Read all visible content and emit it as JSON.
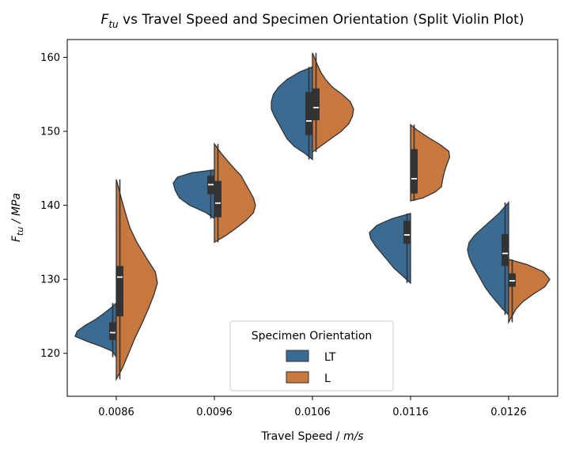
{
  "chart_data": {
    "type": "violin",
    "title_prefix": "F",
    "title_sub": "tu",
    "title_rest": " vs Travel Speed and Specimen Orientation (Split Violin Plot)",
    "xlabel_text": "Travel Speed / ",
    "xlabel_unit": "m/s",
    "ylabel_main": "F",
    "ylabel_sub": "tu",
    "ylabel_unit": " / MPa",
    "categories": [
      "0.0086",
      "0.0096",
      "0.0106",
      "0.0116",
      "0.0126"
    ],
    "ylim": [
      114.2,
      162.4
    ],
    "yticks": [
      120,
      130,
      140,
      150,
      160
    ],
    "grid": false,
    "legend": {
      "title": "Specimen Orientation",
      "placement": "lower center",
      "labels": [
        "LT",
        "L"
      ]
    },
    "series": [
      {
        "name": "LT",
        "color": "#3a6b92",
        "side": "left",
        "groups": [
          {
            "min": 119.5,
            "q1": 121.8,
            "median": 122.8,
            "q3": 124.2,
            "max": 126.8,
            "profile": [
              [
                119.5,
                0
              ],
              [
                120.3,
                0.1
              ],
              [
                121.0,
                0.4
              ],
              [
                121.6,
                0.7
              ],
              [
                122.3,
                1.0
              ],
              [
                123.0,
                0.95
              ],
              [
                123.8,
                0.75
              ],
              [
                124.6,
                0.5
              ],
              [
                125.4,
                0.3
              ],
              [
                126.2,
                0.12
              ],
              [
                126.8,
                0
              ]
            ]
          },
          {
            "min": 138.2,
            "q1": 141.5,
            "median": 142.8,
            "q3": 144.0,
            "max": 144.8,
            "profile": [
              [
                138.2,
                0
              ],
              [
                139.0,
                0.2
              ],
              [
                140.0,
                0.6
              ],
              [
                141.0,
                0.85
              ],
              [
                142.0,
                0.95
              ],
              [
                143.0,
                1.0
              ],
              [
                143.8,
                0.9
              ],
              [
                144.4,
                0.55
              ],
              [
                144.8,
                0
              ]
            ]
          },
          {
            "min": 146.2,
            "q1": 149.5,
            "median": 151.4,
            "q3": 155.3,
            "max": 158.7,
            "profile": [
              [
                146.2,
                0
              ],
              [
                147.0,
                0.18
              ],
              [
                148.0,
                0.45
              ],
              [
                149.0,
                0.62
              ],
              [
                150.0,
                0.72
              ],
              [
                151.0,
                0.82
              ],
              [
                152.0,
                0.92
              ],
              [
                153.0,
                1.0
              ],
              [
                154.0,
                1.0
              ],
              [
                155.0,
                0.95
              ],
              [
                156.0,
                0.82
              ],
              [
                157.0,
                0.62
              ],
              [
                158.0,
                0.32
              ],
              [
                158.7,
                0
              ]
            ]
          },
          {
            "min": 129.5,
            "q1": 134.8,
            "median": 136.0,
            "q3": 137.9,
            "max": 138.9,
            "profile": [
              [
                129.5,
                0
              ],
              [
                130.5,
                0.2
              ],
              [
                131.5,
                0.4
              ],
              [
                132.5,
                0.55
              ],
              [
                133.5,
                0.7
              ],
              [
                134.5,
                0.85
              ],
              [
                135.5,
                0.97
              ],
              [
                136.3,
                1.0
              ],
              [
                137.3,
                0.82
              ],
              [
                138.2,
                0.45
              ],
              [
                138.9,
                0
              ]
            ]
          },
          {
            "min": 125.2,
            "q1": 131.8,
            "median": 133.5,
            "q3": 136.1,
            "max": 140.4,
            "profile": [
              [
                125.2,
                0
              ],
              [
                126.0,
                0.15
              ],
              [
                127.0,
                0.3
              ],
              [
                128.0,
                0.45
              ],
              [
                129.0,
                0.58
              ],
              [
                130.0,
                0.68
              ],
              [
                131.0,
                0.78
              ],
              [
                132.0,
                0.88
              ],
              [
                133.0,
                0.96
              ],
              [
                134.0,
                1.0
              ],
              [
                135.0,
                0.96
              ],
              [
                136.0,
                0.82
              ],
              [
                137.0,
                0.62
              ],
              [
                138.0,
                0.42
              ],
              [
                139.0,
                0.22
              ],
              [
                140.4,
                0
              ]
            ]
          }
        ]
      },
      {
        "name": "L",
        "color": "#c7783e",
        "side": "right",
        "groups": [
          {
            "min": 116.5,
            "q1": 125.0,
            "median": 130.3,
            "q3": 131.8,
            "max": 143.5,
            "profile": [
              [
                116.5,
                0
              ],
              [
                118.0,
                0.15
              ],
              [
                120.0,
                0.3
              ],
              [
                122.0,
                0.45
              ],
              [
                124.0,
                0.62
              ],
              [
                126.0,
                0.78
              ],
              [
                128.0,
                0.92
              ],
              [
                129.5,
                1.0
              ],
              [
                131.0,
                0.95
              ],
              [
                133.0,
                0.72
              ],
              [
                135.0,
                0.5
              ],
              [
                137.0,
                0.33
              ],
              [
                139.0,
                0.22
              ],
              [
                141.0,
                0.12
              ],
              [
                143.5,
                0
              ]
            ]
          },
          {
            "min": 135.0,
            "q1": 138.4,
            "median": 140.3,
            "q3": 143.3,
            "max": 148.3,
            "profile": [
              [
                135.0,
                0
              ],
              [
                136.0,
                0.3
              ],
              [
                137.0,
                0.55
              ],
              [
                138.0,
                0.78
              ],
              [
                139.0,
                0.95
              ],
              [
                140.0,
                1.0
              ],
              [
                141.0,
                0.95
              ],
              [
                142.0,
                0.85
              ],
              [
                143.0,
                0.75
              ],
              [
                144.0,
                0.65
              ],
              [
                145.0,
                0.48
              ],
              [
                146.0,
                0.32
              ],
              [
                147.0,
                0.17
              ],
              [
                148.3,
                0
              ]
            ]
          },
          {
            "min": 147.2,
            "q1": 151.5,
            "median": 153.2,
            "q3": 155.8,
            "max": 160.6,
            "profile": [
              [
                147.2,
                0
              ],
              [
                148.0,
                0.2
              ],
              [
                149.0,
                0.45
              ],
              [
                150.0,
                0.7
              ],
              [
                151.0,
                0.88
              ],
              [
                152.0,
                0.97
              ],
              [
                153.0,
                1.0
              ],
              [
                154.0,
                0.92
              ],
              [
                155.0,
                0.72
              ],
              [
                156.0,
                0.48
              ],
              [
                157.0,
                0.32
              ],
              [
                158.0,
                0.2
              ],
              [
                159.0,
                0.12
              ],
              [
                160.6,
                0
              ]
            ]
          },
          {
            "min": 140.6,
            "q1": 141.6,
            "median": 143.6,
            "q3": 147.6,
            "max": 150.9,
            "profile": [
              [
                140.6,
                0
              ],
              [
                141.0,
                0.3
              ],
              [
                141.8,
                0.6
              ],
              [
                142.5,
                0.75
              ],
              [
                143.5,
                0.78
              ],
              [
                144.5,
                0.82
              ],
              [
                145.5,
                0.88
              ],
              [
                146.5,
                0.95
              ],
              [
                147.3,
                0.93
              ],
              [
                148.2,
                0.72
              ],
              [
                149.2,
                0.42
              ],
              [
                150.2,
                0.15
              ],
              [
                150.9,
                0
              ]
            ]
          },
          {
            "min": 124.2,
            "q1": 129.0,
            "median": 129.8,
            "q3": 130.8,
            "max": 132.7,
            "profile": [
              [
                124.2,
                0
              ],
              [
                125.0,
                0.08
              ],
              [
                126.0,
                0.18
              ],
              [
                127.0,
                0.35
              ],
              [
                128.0,
                0.6
              ],
              [
                129.0,
                0.88
              ],
              [
                130.0,
                1.0
              ],
              [
                131.0,
                0.85
              ],
              [
                132.0,
                0.45
              ],
              [
                132.7,
                0
              ]
            ]
          }
        ]
      }
    ]
  }
}
